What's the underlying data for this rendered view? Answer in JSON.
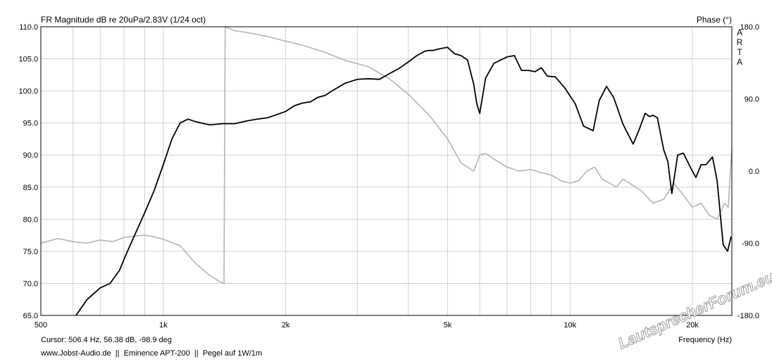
{
  "chart_data": {
    "type": "line",
    "title": "FR Magnitude dB re 20uPa/2.83V (1/24 oct)",
    "right_title": "Phase (°)",
    "watermark_side": "ARTA",
    "xlabel": "Frequency (Hz)",
    "x_scale": "log",
    "xlim": [
      500,
      25000
    ],
    "x_ticks": [
      500,
      1000,
      2000,
      5000,
      10000,
      20000
    ],
    "x_tick_labels": [
      "500",
      "1k",
      "2k",
      "5k",
      "10k",
      "20k"
    ],
    "ylim": [
      65,
      110
    ],
    "y_ticks": [
      65,
      70,
      75,
      80,
      85,
      90,
      95,
      100,
      105,
      110
    ],
    "y_tick_labels": [
      "65.0",
      "70.0",
      "75.0",
      "80.0",
      "85.0",
      "90.0",
      "95.0",
      "100.0",
      "105.0",
      "110.0"
    ],
    "y2lim": [
      -180,
      180
    ],
    "y2_ticks": [
      -180,
      -90,
      0,
      90,
      180
    ],
    "y2_tick_labels": [
      "-180.0",
      "-90.0",
      "0.0",
      "90.0",
      "180.0"
    ],
    "grid": true,
    "series": [
      {
        "axis": "left",
        "color": "#000000",
        "x": [
          610,
          650,
          700,
          740,
          780,
          810,
          850,
          900,
          950,
          1000,
          1050,
          1100,
          1150,
          1200,
          1300,
          1400,
          1500,
          1600,
          1700,
          1800,
          1900,
          2000,
          2100,
          2200,
          2300,
          2400,
          2500,
          2600,
          2800,
          3000,
          3200,
          3400,
          3600,
          3800,
          4000,
          4200,
          4400,
          4500,
          4600,
          4800,
          5000,
          5200,
          5400,
          5600,
          5800,
          5900,
          6000,
          6200,
          6500,
          7000,
          7300,
          7600,
          7900,
          8200,
          8500,
          8800,
          9200,
          9700,
          10300,
          10800,
          11400,
          11800,
          12300,
          12800,
          13500,
          14300,
          14800,
          15300,
          15700,
          16000,
          16400,
          17000,
          17400,
          17800,
          18400,
          19000,
          19800,
          20400,
          21000,
          21600,
          22400,
          23000,
          23800,
          24400,
          24900
        ],
        "y": [
          65.0,
          67.5,
          69.3,
          70.0,
          72.0,
          74.5,
          77.5,
          81.0,
          84.5,
          88.5,
          92.5,
          95.0,
          95.6,
          95.2,
          94.7,
          94.9,
          94.9,
          95.3,
          95.6,
          95.8,
          96.3,
          96.8,
          97.7,
          98.1,
          98.3,
          99.0,
          99.3,
          100.0,
          101.2,
          101.8,
          101.9,
          101.8,
          102.7,
          103.5,
          104.5,
          105.5,
          106.2,
          106.3,
          106.3,
          106.6,
          106.8,
          105.8,
          105.5,
          104.8,
          101.0,
          98.0,
          96.5,
          102.0,
          104.3,
          105.3,
          105.5,
          103.2,
          103.2,
          103.0,
          103.6,
          102.3,
          102.2,
          100.5,
          98.0,
          94.5,
          93.8,
          98.5,
          100.7,
          99.0,
          94.8,
          91.7,
          94.0,
          96.5,
          96.0,
          96.2,
          95.8,
          90.8,
          89.0,
          84.0,
          90.0,
          90.3,
          88.0,
          86.5,
          88.5,
          88.5,
          89.7,
          86.0,
          76.0,
          75.0,
          77.3
        ]
      },
      {
        "axis": "right",
        "color": "#b4b4b4",
        "x": [
          500,
          550,
          600,
          650,
          700,
          750,
          800,
          850,
          900,
          950,
          1000,
          1100,
          1200,
          1300,
          1400,
          1410,
          1420,
          1500,
          1600,
          1800,
          2000,
          2200,
          2500,
          2800,
          3200,
          3600,
          4000,
          4500,
          5000,
          5400,
          5800,
          6000,
          6200,
          6500,
          7000,
          7500,
          8000,
          8500,
          9000,
          9500,
          10000,
          10500,
          11000,
          11500,
          12000,
          12500,
          13000,
          13500,
          14000,
          15000,
          16000,
          17000,
          18000,
          19000,
          20000,
          21000,
          22000,
          23000,
          24000,
          24500,
          25000
        ],
        "y": [
          -90,
          -84,
          -88,
          -90,
          -86,
          -88,
          -83,
          -81,
          -80,
          -82,
          -85,
          -93,
          -115,
          -130,
          -140,
          -140,
          180,
          175,
          173,
          168,
          162,
          157,
          148,
          138,
          130,
          115,
          96,
          70,
          40,
          10,
          0,
          20,
          22,
          15,
          5,
          0,
          2,
          -2,
          -5,
          -12,
          -15,
          -12,
          0,
          5,
          -10,
          -15,
          -20,
          -10,
          -15,
          -25,
          -40,
          -35,
          -15,
          -30,
          -45,
          -40,
          -55,
          -60,
          -40,
          -45,
          30
        ]
      }
    ],
    "cursor_readout": "Cursor: 506.4 Hz, 56.38 dB, -98.9 deg",
    "footer_note": "www.Jobst-Audio.de  ||  Eminence APT-200  ||  Pegel auf 1W/1m",
    "watermark_text": "LautsprecherForum.eu"
  }
}
